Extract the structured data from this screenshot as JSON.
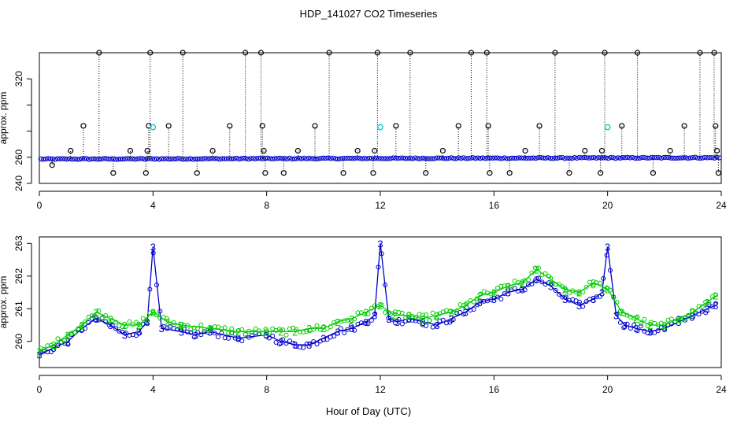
{
  "title": "HDP_141027  CO2 Timeseries",
  "xlabel": "Hour of Day (UTC)",
  "colors": {
    "blue": "#0000cc",
    "green": "#00cc00",
    "cyan": "#00cccc",
    "black": "#000000"
  },
  "chart_data": [
    {
      "type": "scatter",
      "name": "top-panel",
      "ylabel": "approx. ppm",
      "xlim": [
        0,
        24
      ],
      "ylim": [
        240,
        340
      ],
      "xticks": [
        0,
        4,
        8,
        12,
        16,
        20,
        24
      ],
      "yticks": [
        240,
        260,
        280,
        300,
        320
      ],
      "ytick_labels": [
        "240",
        "260",
        "",
        "",
        "320"
      ],
      "baseline": {
        "start": 258.6,
        "end": 259.7,
        "label": "blue circles along ~259 ppm"
      },
      "outliers_high": [
        [
          0.45,
          254
        ],
        [
          1.1,
          265
        ],
        [
          1.55,
          284
        ],
        [
          2.1,
          344
        ],
        [
          2.6,
          248
        ],
        [
          3.2,
          265
        ],
        [
          3.75,
          248
        ],
        [
          3.8,
          265
        ],
        [
          3.85,
          284
        ],
        [
          3.9,
          344
        ],
        [
          4.55,
          284
        ],
        [
          5.05,
          344
        ],
        [
          5.55,
          248
        ],
        [
          6.1,
          265
        ],
        [
          6.7,
          284
        ],
        [
          7.25,
          344
        ],
        [
          7.8,
          344
        ],
        [
          7.85,
          284
        ],
        [
          7.9,
          265
        ],
        [
          7.95,
          248
        ],
        [
          8.6,
          248
        ],
        [
          9.1,
          265
        ],
        [
          9.7,
          284
        ],
        [
          10.2,
          344
        ],
        [
          10.7,
          248
        ],
        [
          11.2,
          265
        ],
        [
          11.75,
          248
        ],
        [
          11.8,
          265
        ],
        [
          11.9,
          344
        ],
        [
          12.55,
          284
        ],
        [
          13.05,
          344
        ],
        [
          13.6,
          248
        ],
        [
          14.2,
          265
        ],
        [
          14.75,
          284
        ],
        [
          15.2,
          344
        ],
        [
          15.75,
          344
        ],
        [
          15.8,
          284
        ],
        [
          15.85,
          248
        ],
        [
          16.55,
          248
        ],
        [
          17.1,
          265
        ],
        [
          17.6,
          284
        ],
        [
          18.15,
          344
        ],
        [
          18.65,
          248
        ],
        [
          19.2,
          265
        ],
        [
          19.75,
          248
        ],
        [
          19.8,
          265
        ],
        [
          19.9,
          344
        ],
        [
          20.5,
          284
        ],
        [
          21.05,
          344
        ],
        [
          21.6,
          248
        ],
        [
          22.2,
          265
        ],
        [
          22.7,
          284
        ],
        [
          23.25,
          344
        ],
        [
          23.75,
          344
        ],
        [
          23.8,
          284
        ],
        [
          23.85,
          265
        ],
        [
          23.9,
          248
        ]
      ],
      "cyan_markers": [
        [
          4.0,
          283
        ],
        [
          12.0,
          283
        ],
        [
          20.0,
          283
        ]
      ]
    },
    {
      "type": "line",
      "name": "bottom-panel",
      "ylabel": "approx. ppm",
      "xlim": [
        0,
        24
      ],
      "ylim": [
        259.2,
        263.2
      ],
      "xticks": [
        0,
        4,
        8,
        12,
        16,
        20,
        24
      ],
      "yticks": [
        260,
        261,
        262,
        263
      ],
      "series": [
        {
          "name": "3",
          "marker": "3",
          "color": "#0000cc",
          "x": [
            0,
            0.5,
            1,
            1.5,
            2,
            2.5,
            3,
            3.5,
            3.8,
            4,
            4.3,
            5,
            5.5,
            6,
            7,
            8,
            8.5,
            9,
            9.5,
            10,
            10.5,
            11,
            11.5,
            11.8,
            12,
            12.3,
            12.6,
            13,
            13.5,
            14,
            14.5,
            15,
            15.5,
            16,
            16.5,
            17,
            17.5,
            18,
            18.5,
            19,
            19.5,
            19.8,
            20,
            20.3,
            20.6,
            21,
            21.5,
            22,
            22.5,
            23,
            23.5,
            23.8
          ],
          "y": [
            259.6,
            259.8,
            260.0,
            260.4,
            260.7,
            260.5,
            260.2,
            260.3,
            260.6,
            262.9,
            260.4,
            260.3,
            260.2,
            260.3,
            260.1,
            260.2,
            260.0,
            259.9,
            259.9,
            260.1,
            260.3,
            260.4,
            260.6,
            260.8,
            263.0,
            260.7,
            260.6,
            260.7,
            260.6,
            260.5,
            260.7,
            260.9,
            261.2,
            261.3,
            261.5,
            261.6,
            261.9,
            261.7,
            261.3,
            261.1,
            261.3,
            261.5,
            262.9,
            260.8,
            260.5,
            260.4,
            260.3,
            260.4,
            260.6,
            260.8,
            261.0,
            261.1
          ]
        },
        {
          "name": "2",
          "marker": "2",
          "color": "#00cc00",
          "x": [
            0,
            0.5,
            1,
            1.5,
            2,
            2.5,
            3,
            3.5,
            4,
            4.5,
            5,
            6,
            7,
            8,
            8.5,
            9,
            9.5,
            10,
            10.5,
            11,
            11.5,
            12,
            12.5,
            13,
            13.5,
            14,
            14.5,
            15,
            15.5,
            16,
            16.5,
            17,
            17.5,
            18,
            18.5,
            19,
            19.5,
            20,
            20.5,
            21,
            21.5,
            22,
            22.5,
            23,
            23.5,
            23.8
          ],
          "y": [
            259.7,
            259.9,
            260.2,
            260.5,
            260.9,
            260.7,
            260.5,
            260.5,
            260.9,
            260.6,
            260.5,
            260.4,
            260.3,
            260.3,
            260.3,
            260.3,
            260.4,
            260.4,
            260.6,
            260.7,
            260.9,
            261.1,
            260.8,
            260.8,
            260.7,
            260.8,
            260.9,
            261.1,
            261.4,
            261.5,
            261.7,
            261.8,
            262.2,
            261.9,
            261.6,
            261.5,
            261.8,
            261.6,
            260.9,
            260.7,
            260.5,
            260.5,
            260.7,
            260.9,
            261.2,
            261.4
          ]
        }
      ]
    }
  ]
}
